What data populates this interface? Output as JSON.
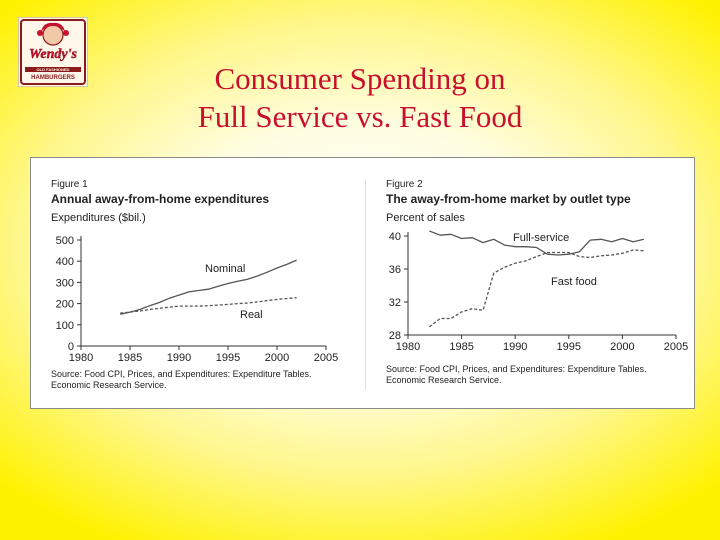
{
  "slide": {
    "title_line1": "Consumer Spending on",
    "title_line2": "Full Service vs. Fast Food"
  },
  "logo": {
    "wordmark": "Wendy's",
    "tagline": "OLD FASHIONED",
    "subtitle": "HAMBURGERS",
    "colors": {
      "red": "#c8102e",
      "border": "#8b1a1a",
      "cream": "#fff7ea"
    }
  },
  "colors": {
    "title": "#c8102e",
    "line": "#555555",
    "text": "#222222"
  },
  "chart_data": [
    {
      "type": "line",
      "figure_label": "Figure 1",
      "title": "Annual away-from-home expenditures",
      "ylabel": "Expenditures ($bil.)",
      "xlim": [
        1980,
        2005
      ],
      "ylim": [
        0,
        500
      ],
      "x_ticks": [
        1980,
        1985,
        1990,
        1995,
        2000,
        2005
      ],
      "y_ticks": [
        0,
        100,
        200,
        300,
        400,
        500
      ],
      "grid": false,
      "series": [
        {
          "name": "Nominal",
          "style": "solid",
          "x": [
            1984,
            1985,
            1986,
            1987,
            1988,
            1989,
            1990,
            1991,
            1992,
            1993,
            1994,
            1995,
            1996,
            1997,
            1998,
            1999,
            2000,
            2001,
            2002
          ],
          "values": [
            150,
            160,
            172,
            190,
            205,
            225,
            240,
            255,
            262,
            268,
            282,
            295,
            305,
            315,
            330,
            348,
            368,
            385,
            405
          ]
        },
        {
          "name": "Real",
          "style": "dashed",
          "x": [
            1984,
            1985,
            1986,
            1987,
            1988,
            1989,
            1990,
            1991,
            1992,
            1993,
            1994,
            1995,
            1996,
            1997,
            1998,
            1999,
            2000,
            2001,
            2002
          ],
          "values": [
            155,
            160,
            165,
            172,
            178,
            183,
            188,
            188,
            188,
            190,
            193,
            196,
            200,
            203,
            208,
            214,
            220,
            224,
            228
          ]
        }
      ],
      "source": "Source: Food CPI, Prices, and Expenditures: Expenditure Tables.",
      "source_line2": "Economic Research Service."
    },
    {
      "type": "line",
      "figure_label": "Figure 2",
      "title": "The away-from-home market by outlet type",
      "ylabel": "Percent of sales",
      "xlim": [
        1980,
        2005
      ],
      "ylim": [
        28,
        40
      ],
      "x_ticks": [
        1980,
        1985,
        1990,
        1995,
        2000,
        2005
      ],
      "y_ticks": [
        28,
        32,
        36,
        40
      ],
      "grid": false,
      "series": [
        {
          "name": "Full-service",
          "style": "solid",
          "x": [
            1982,
            1983,
            1984,
            1985,
            1986,
            1987,
            1988,
            1989,
            1990,
            1991,
            1992,
            1993,
            1994,
            1995,
            1996,
            1997,
            1998,
            1999,
            2000,
            2001,
            2002
          ],
          "values": [
            40.6,
            40.1,
            40.2,
            39.7,
            39.8,
            39.2,
            39.6,
            38.9,
            38.7,
            38.7,
            38.6,
            37.8,
            37.7,
            37.8,
            38.1,
            39.5,
            39.6,
            39.3,
            39.7,
            39.3,
            39.6
          ]
        },
        {
          "name": "Fast food",
          "style": "dashed",
          "x": [
            1982,
            1983,
            1984,
            1985,
            1986,
            1987,
            1988,
            1989,
            1990,
            1991,
            1992,
            1993,
            1994,
            1995,
            1996,
            1997,
            1998,
            1999,
            2000,
            2001,
            2002
          ],
          "values": [
            29.0,
            30.0,
            30.0,
            30.8,
            31.2,
            31.0,
            35.5,
            36.2,
            36.7,
            37.0,
            37.5,
            38.0,
            38.0,
            38.0,
            37.5,
            37.4,
            37.6,
            37.7,
            37.9,
            38.3,
            38.2
          ]
        }
      ],
      "source": "Source: Food CPI, Prices, and Expenditures: Expenditure Tables.",
      "source_line2": "Economic Research Service."
    }
  ]
}
